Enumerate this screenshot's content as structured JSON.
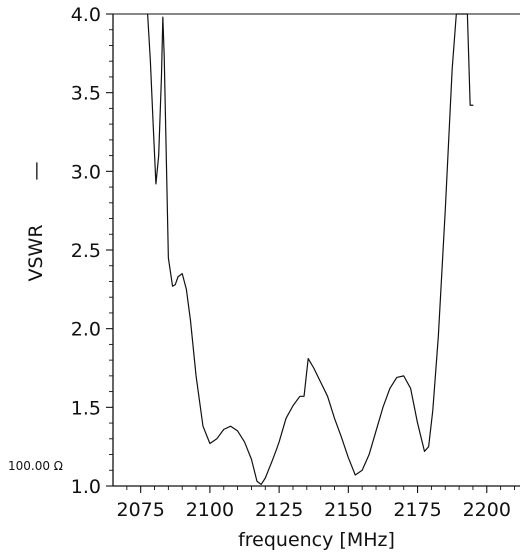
{
  "chart_data": {
    "type": "line",
    "title": "",
    "xlabel": "frequency [MHz]",
    "ylabel": "VSWR",
    "ylabel_legend_mark": "—",
    "ref_label": "100.00 Ω",
    "xlim": [
      2065,
      2212
    ],
    "ylim": [
      1.0,
      4.0
    ],
    "x_ticks": [
      2075,
      2100,
      2125,
      2150,
      2175,
      2200
    ],
    "x_tick_labels": [
      "2075",
      "2100",
      "2125",
      "2150",
      "2175",
      "2200"
    ],
    "y_ticks": [
      1.0,
      1.5,
      2.0,
      2.5,
      3.0,
      3.5,
      4.0
    ],
    "y_tick_labels": [
      "1.0",
      "1.5",
      "2.0",
      "2.5",
      "3.0",
      "3.5",
      "4.0"
    ],
    "grid": false,
    "series": [
      {
        "x": [
          2077.5,
          2078.5,
          2079.5,
          2080.5,
          2081.5,
          2082.5,
          2083.0,
          2083.5,
          2085.0,
          2086.5,
          2087.5,
          2088.5,
          2090.0,
          2091.5,
          2093.0,
          2095.0,
          2097.5,
          2100.0,
          2102.5,
          2105.0,
          2107.5,
          2110.0,
          2112.5,
          2115.0,
          2117.0,
          2118.5,
          2120.0,
          2122.5,
          2124.0,
          2125.0,
          2127.5,
          2130.0,
          2132.5,
          2134.0,
          2135.5,
          2137.5,
          2140.0,
          2142.5,
          2145.0,
          2147.5,
          2150.0,
          2152.5,
          2155.0,
          2157.5,
          2160.0,
          2162.5,
          2165.0,
          2167.5,
          2170.0,
          2172.5,
          2175.0,
          2177.5,
          2179.0,
          2180.5,
          2182.5,
          2185.0,
          2187.5,
          2189.0,
          2191.0,
          2192.0,
          2193.0,
          2194.0,
          2195.0
        ],
        "y": [
          4.0,
          3.7,
          3.3,
          2.92,
          3.1,
          3.6,
          3.98,
          3.73,
          2.45,
          2.27,
          2.28,
          2.33,
          2.35,
          2.25,
          2.05,
          1.7,
          1.38,
          1.27,
          1.3,
          1.36,
          1.38,
          1.35,
          1.28,
          1.17,
          1.03,
          1.01,
          1.05,
          1.16,
          1.23,
          1.28,
          1.43,
          1.51,
          1.57,
          1.57,
          1.81,
          1.75,
          1.66,
          1.57,
          1.43,
          1.31,
          1.18,
          1.07,
          1.1,
          1.2,
          1.35,
          1.5,
          1.62,
          1.69,
          1.7,
          1.62,
          1.4,
          1.22,
          1.25,
          1.48,
          1.95,
          2.75,
          3.65,
          4.0,
          4.0,
          4.0,
          4.0,
          3.42,
          3.42
        ]
      }
    ],
    "colors": {
      "line": "#111111",
      "axis": "#111111",
      "background": "#ffffff"
    }
  }
}
